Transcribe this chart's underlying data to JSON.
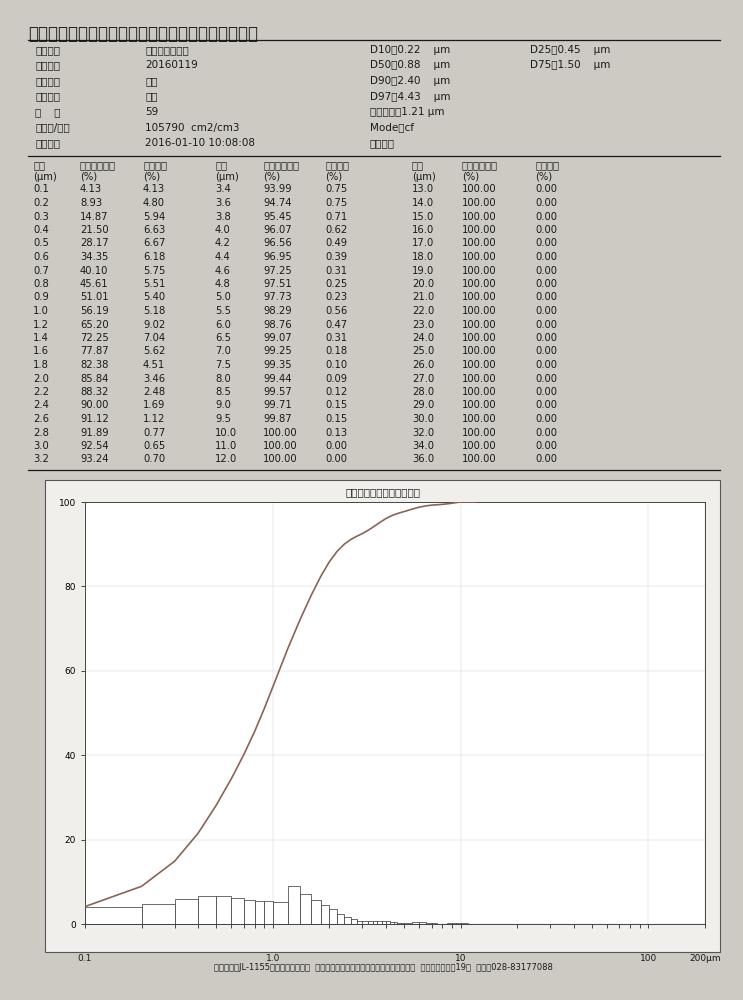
{
  "title": "重庆大足红蝶锶业有限公司粉状碳酸锶粒径测试报告",
  "info_left": [
    [
      "试样名称",
      "活性粉状碳酸锶"
    ],
    [
      "试样编号",
      "20160119"
    ],
    [
      "试样名称",
      "六偏"
    ],
    [
      "操作人员",
      "陈明"
    ],
    [
      "浓    度",
      "59"
    ],
    [
      "表面积/体积",
      "105790  cm2/cm3"
    ],
    [
      "测试日期",
      "2016-01-10 10:08:08"
    ]
  ],
  "right_col1": [
    "D10：0.22    μm",
    "D50：0.88    μm",
    "D90：2.40    μm",
    "D97：4.43    μm",
    "平均粒径：1.21 μm",
    "Mode：cf",
    "文件名："
  ],
  "right_col2": [
    "D25：0.45    μm",
    "D75：1.50    μm",
    "",
    "",
    "",
    "",
    ""
  ],
  "table_headers_r1": [
    "粒径",
    "体积累积分布",
    "频度分布",
    "粒径",
    "体积累积分布",
    "频度分布",
    "粒径",
    "体积累积分布",
    "频度分布"
  ],
  "table_headers_r2": [
    "(μm)",
    "(%)",
    "(%)",
    "(μm)",
    "(%)",
    "(%)",
    "(μm)",
    "(%)",
    "(%)"
  ],
  "table_data": [
    [
      0.1,
      4.13,
      4.13,
      3.4,
      93.99,
      0.75,
      13.0,
      100.0,
      0.0
    ],
    [
      0.2,
      8.93,
      4.8,
      3.6,
      94.74,
      0.75,
      14.0,
      100.0,
      0.0
    ],
    [
      0.3,
      14.87,
      5.94,
      3.8,
      95.45,
      0.71,
      15.0,
      100.0,
      0.0
    ],
    [
      0.4,
      21.5,
      6.63,
      4.0,
      96.07,
      0.62,
      16.0,
      100.0,
      0.0
    ],
    [
      0.5,
      28.17,
      6.67,
      4.2,
      96.56,
      0.49,
      17.0,
      100.0,
      0.0
    ],
    [
      0.6,
      34.35,
      6.18,
      4.4,
      96.95,
      0.39,
      18.0,
      100.0,
      0.0
    ],
    [
      0.7,
      40.1,
      5.75,
      4.6,
      97.25,
      0.31,
      19.0,
      100.0,
      0.0
    ],
    [
      0.8,
      45.61,
      5.51,
      4.8,
      97.51,
      0.25,
      20.0,
      100.0,
      0.0
    ],
    [
      0.9,
      51.01,
      5.4,
      5.0,
      97.73,
      0.23,
      21.0,
      100.0,
      0.0
    ],
    [
      1.0,
      56.19,
      5.18,
      5.5,
      98.29,
      0.56,
      22.0,
      100.0,
      0.0
    ],
    [
      1.2,
      65.2,
      9.02,
      6.0,
      98.76,
      0.47,
      23.0,
      100.0,
      0.0
    ],
    [
      1.4,
      72.25,
      7.04,
      6.5,
      99.07,
      0.31,
      24.0,
      100.0,
      0.0
    ],
    [
      1.6,
      77.87,
      5.62,
      7.0,
      99.25,
      0.18,
      25.0,
      100.0,
      0.0
    ],
    [
      1.8,
      82.38,
      4.51,
      7.5,
      99.35,
      0.1,
      26.0,
      100.0,
      0.0
    ],
    [
      2.0,
      85.84,
      3.46,
      8.0,
      99.44,
      0.09,
      27.0,
      100.0,
      0.0
    ],
    [
      2.2,
      88.32,
      2.48,
      8.5,
      99.57,
      0.12,
      28.0,
      100.0,
      0.0
    ],
    [
      2.4,
      90.0,
      1.69,
      9.0,
      99.71,
      0.15,
      29.0,
      100.0,
      0.0
    ],
    [
      2.6,
      91.12,
      1.12,
      9.5,
      99.87,
      0.15,
      30.0,
      100.0,
      0.0
    ],
    [
      2.8,
      91.89,
      0.77,
      10.0,
      100.0,
      0.13,
      32.0,
      100.0,
      0.0
    ],
    [
      3.0,
      92.54,
      0.65,
      11.0,
      100.0,
      0.0,
      34.0,
      100.0,
      0.0
    ],
    [
      3.2,
      93.24,
      0.7,
      12.0,
      100.0,
      0.0,
      36.0,
      100.0,
      0.0
    ]
  ],
  "chart_title": "体积（重量）累积分布曲线",
  "x_sizes": [
    0.1,
    0.2,
    0.3,
    0.4,
    0.5,
    0.6,
    0.7,
    0.8,
    0.9,
    1.0,
    1.2,
    1.4,
    1.6,
    1.8,
    2.0,
    2.2,
    2.4,
    2.6,
    2.8,
    3.0,
    3.2,
    3.4,
    3.6,
    3.8,
    4.0,
    4.2,
    4.4,
    4.6,
    4.8,
    5.0,
    5.5,
    6.0,
    6.5,
    7.0,
    7.5,
    8.0,
    8.5,
    9.0,
    9.5,
    10.0,
    11.0,
    12.0
  ],
  "freq_vals": [
    4.13,
    4.8,
    5.94,
    6.63,
    6.67,
    6.18,
    5.75,
    5.51,
    5.4,
    5.18,
    9.02,
    7.04,
    5.62,
    4.51,
    3.46,
    2.48,
    1.69,
    1.12,
    0.77,
    0.65,
    0.7,
    0.75,
    0.75,
    0.71,
    0.62,
    0.49,
    0.39,
    0.31,
    0.25,
    0.23,
    0.56,
    0.47,
    0.31,
    0.18,
    0.1,
    0.09,
    0.12,
    0.15,
    0.15,
    0.13,
    0.0,
    0.0
  ],
  "cumulative": [
    4.13,
    8.93,
    14.87,
    21.5,
    28.17,
    34.35,
    40.1,
    45.61,
    51.01,
    56.19,
    65.2,
    72.25,
    77.87,
    82.38,
    85.84,
    88.32,
    90.0,
    91.12,
    91.89,
    92.54,
    93.24,
    93.99,
    94.74,
    95.45,
    96.07,
    96.56,
    96.95,
    97.25,
    97.51,
    97.73,
    98.29,
    98.76,
    99.07,
    99.25,
    99.35,
    99.44,
    99.57,
    99.71,
    99.87,
    100.0,
    100.0,
    100.0
  ],
  "bg_color": "#cccac2",
  "text_color": "#1a1a1a",
  "footer": "仪器型号：JL-1155激光光粒度测试仪  仪器制造商：成都精新粉体测试设备有限公司  成都市白马寺街19号  电话：028-83177088"
}
